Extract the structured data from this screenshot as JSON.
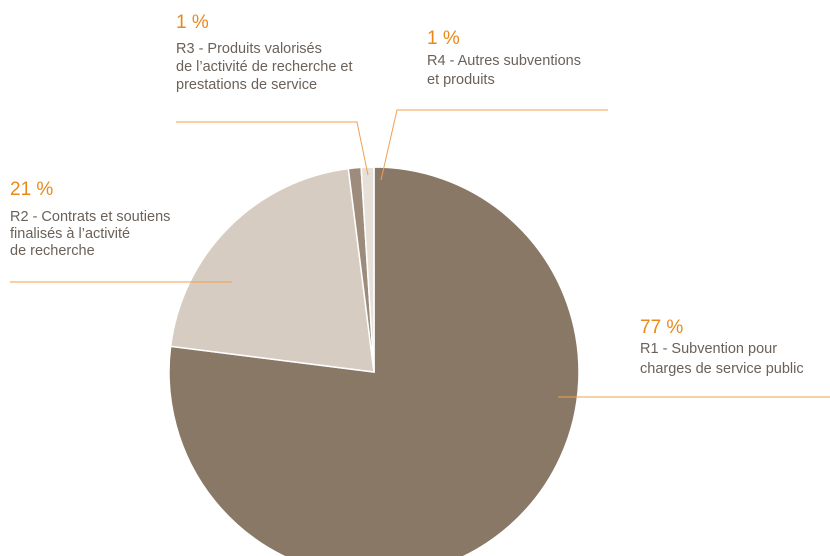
{
  "chart_data": {
    "type": "pie",
    "categories": [
      [
        "R1 - Subvention pour",
        "charges de service public"
      ],
      [
        "R2 - Contrats et soutiens",
        "finalisés à l’activité",
        "de recherche"
      ],
      [
        "R3 - Produits valorisés",
        "de l’activité de recherche et",
        "prestations de service"
      ],
      [
        "R4 - Autres subventions",
        "et produits"
      ]
    ],
    "values": [
      77,
      21,
      1,
      1
    ],
    "value_labels": [
      "77 %",
      "21 %",
      "1 %",
      "1 %"
    ],
    "colors": [
      "#8a7866",
      "#d6ccc1",
      "#9d8c7b",
      "#e7e0d8"
    ]
  }
}
